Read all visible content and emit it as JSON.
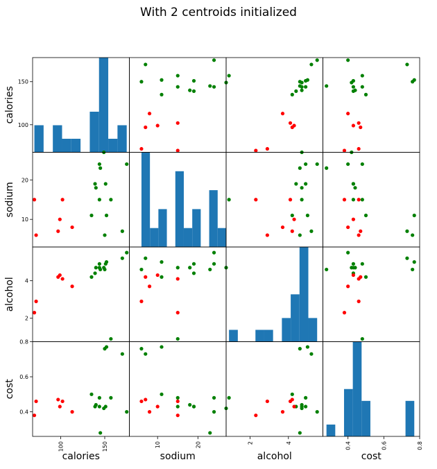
{
  "title": "With 2 centroids initialized",
  "colors": {
    "hist": "#1f77b4",
    "cluster_a": "#ff0000",
    "cluster_b": "#008000"
  },
  "chart_data": {
    "type": "scatter_matrix",
    "title": "With 2 centroids initialized",
    "variables": [
      "calories",
      "sodium",
      "alcohol",
      "cost"
    ],
    "ranges": {
      "calories": [
        68,
        178
      ],
      "sodium": [
        3,
        27
      ],
      "alcohol": [
        0.75,
        5.8
      ],
      "cost": [
        0.26,
        0.8
      ]
    },
    "ticks": {
      "calories": [
        100,
        150
      ],
      "sodium": [
        10,
        20
      ],
      "alcohol": [
        2,
        4
      ],
      "cost": [
        0.4,
        0.6,
        0.8
      ]
    },
    "tick_labels": {
      "calories": [
        "100",
        "150"
      ],
      "sodium": [
        "10",
        "20"
      ],
      "alcohol": [
        "2",
        "4"
      ],
      "cost": [
        "0.4",
        "0.6",
        "0.8"
      ]
    },
    "bottom_ticks": {
      "calories": [
        "100",
        "150"
      ],
      "sodium": [
        "10",
        "20"
      ],
      "alcohol": [
        "2",
        "4"
      ],
      "cost": [
        "0.4",
        "0.6",
        "0.8"
      ]
    },
    "diagonal": "histogram",
    "points": [
      {
        "calories": 144,
        "sodium": 15,
        "alcohol": 4.7,
        "cost": 0.43,
        "cluster": 1
      },
      {
        "calories": 151,
        "sodium": 19,
        "alcohol": 4.9,
        "cost": 0.43,
        "cluster": 1
      },
      {
        "calories": 157,
        "sodium": 15,
        "alcohol": 0.9,
        "cost": 0.48,
        "cluster": 1
      },
      {
        "calories": 170,
        "sodium": 7,
        "alcohol": 5.2,
        "cost": 0.73,
        "cluster": 1
      },
      {
        "calories": 152,
        "sodium": 11,
        "alcohol": 5.0,
        "cost": 0.77,
        "cluster": 1
      },
      {
        "calories": 145,
        "sodium": 23,
        "alcohol": 4.6,
        "cost": 0.28,
        "cluster": 1
      },
      {
        "calories": 175,
        "sodium": 24,
        "alcohol": 5.5,
        "cost": 0.4,
        "cluster": 1
      },
      {
        "calories": 149,
        "sodium": 27,
        "alcohol": 4.7,
        "cost": 0.42,
        "cluster": 1
      },
      {
        "calories": 139,
        "sodium": 19,
        "alcohol": 4.4,
        "cost": 0.43,
        "cluster": 1
      },
      {
        "calories": 150,
        "sodium": 6,
        "alcohol": 4.6,
        "cost": 0.76,
        "cluster": 1
      },
      {
        "calories": 135,
        "sodium": 11,
        "alcohol": 4.2,
        "cost": 0.5,
        "cluster": 1
      },
      {
        "calories": 140,
        "sodium": 18,
        "alcohol": 4.7,
        "cost": 0.44,
        "cluster": 1
      },
      {
        "calories": 144,
        "sodium": 24,
        "alcohol": 4.9,
        "cost": 0.48,
        "cluster": 1
      },
      {
        "calories": 102,
        "sodium": 15,
        "alcohol": 4.1,
        "cost": 0.46,
        "cluster": 0
      },
      {
        "calories": 72,
        "sodium": 6,
        "alcohol": 2.9,
        "cost": 0.46,
        "cluster": 0
      },
      {
        "calories": 97,
        "sodium": 7,
        "alcohol": 4.2,
        "cost": 0.47,
        "cluster": 0
      },
      {
        "calories": 70,
        "sodium": 15,
        "alcohol": 2.3,
        "cost": 0.38,
        "cluster": 0
      },
      {
        "calories": 113,
        "sodium": 8,
        "alcohol": 3.7,
        "cost": 0.4,
        "cluster": 0
      },
      {
        "calories": 99,
        "sodium": 10,
        "alcohol": 4.3,
        "cost": 0.43,
        "cluster": 0
      }
    ]
  }
}
